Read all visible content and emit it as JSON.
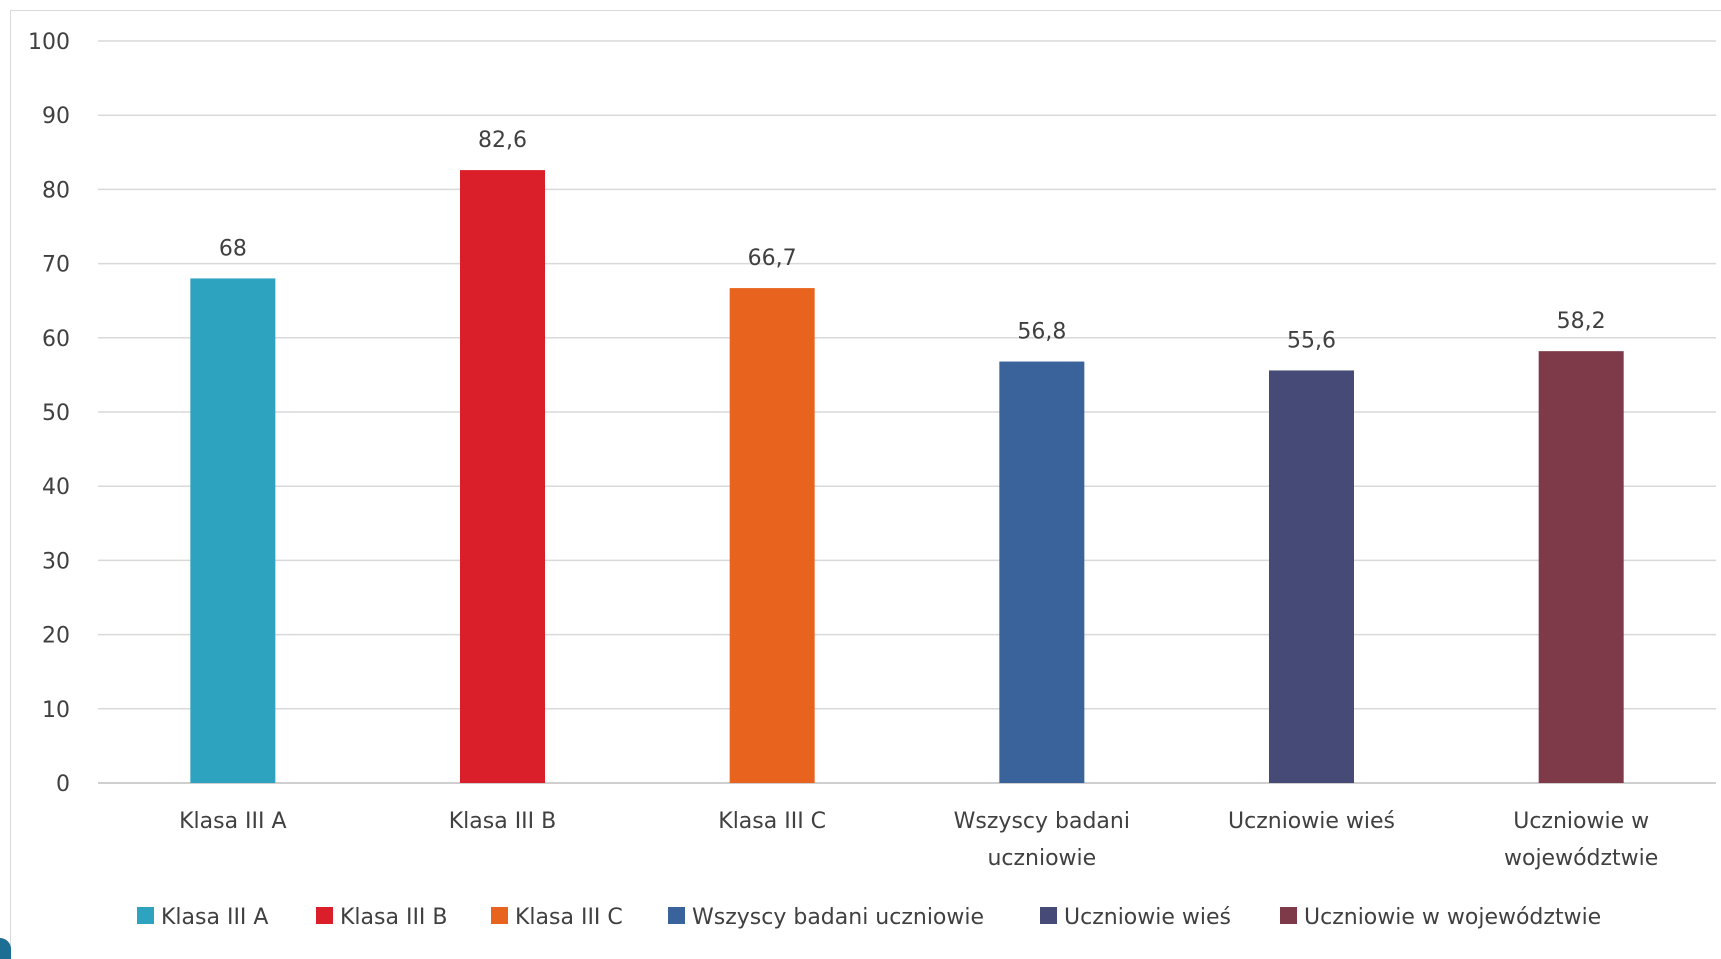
{
  "chart_data": {
    "type": "bar",
    "title": "",
    "xlabel": "",
    "ylabel": "",
    "ylim": [
      0,
      100
    ],
    "yticks": [
      0,
      10,
      20,
      30,
      40,
      50,
      60,
      70,
      80,
      90,
      100
    ],
    "grid": true,
    "legend_position": "bottom",
    "categories": [
      "Klasa III A",
      "Klasa III B",
      "Klasa III C",
      "Wszyscy badani uczniowie",
      "Uczniowie wieś",
      "Uczniowie w województwie"
    ],
    "category_label_lines": [
      [
        "Klasa III A"
      ],
      [
        "Klasa III B"
      ],
      [
        "Klasa III C"
      ],
      [
        "Wszyscy badani",
        "uczniowie"
      ],
      [
        "Uczniowie wieś"
      ],
      [
        "Uczniowie w",
        "województwie"
      ]
    ],
    "values": [
      68,
      82.6,
      66.7,
      56.8,
      55.6,
      58.2
    ],
    "value_labels": [
      "68",
      "82,6",
      "66,7",
      "56,8",
      "55,6",
      "58,2"
    ],
    "colors": [
      "#2ea3bf",
      "#db1f2a",
      "#e8641e",
      "#3a639c",
      "#464a77",
      "#7e3a48"
    ],
    "legend": [
      "Klasa III A",
      "Klasa III B",
      "Klasa III C",
      "Wszyscy badani uczniowie",
      "Uczniowie wieś",
      "Uczniowie w województwie"
    ]
  }
}
